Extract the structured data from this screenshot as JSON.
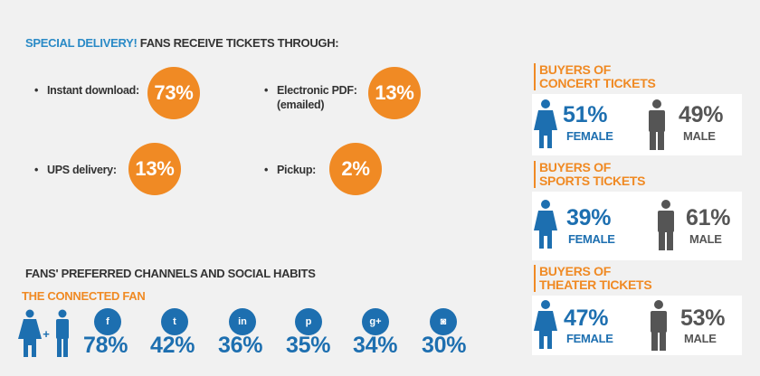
{
  "header": {
    "part1": "SPECIAL DELIVERY!",
    "part2": "FANS RECEIVE TICKETS THROUGH:"
  },
  "delivery": [
    {
      "label": "Instant download:",
      "value": "73%"
    },
    {
      "label": "Electronic PDF:",
      "label2": "(emailed)",
      "value": "13%"
    },
    {
      "label": "UPS delivery:",
      "value": "13%"
    },
    {
      "label": "Pickup:",
      "value": "2%"
    }
  ],
  "channels": {
    "title": "FANS' PREFERRED CHANNELS AND SOCIAL HABITS",
    "subtitle": "THE CONNECTED FAN",
    "items": [
      {
        "icon": "facebook-icon",
        "glyph": "f",
        "value": "78%"
      },
      {
        "icon": "twitter-icon",
        "glyph": "t",
        "value": "42%"
      },
      {
        "icon": "linkedin-icon",
        "glyph": "in",
        "value": "36%"
      },
      {
        "icon": "pinterest-icon",
        "glyph": "p",
        "value": "35%"
      },
      {
        "icon": "googleplus-icon",
        "glyph": "g+",
        "value": "34%"
      },
      {
        "icon": "instagram-icon",
        "glyph": "◙",
        "value": "30%"
      }
    ]
  },
  "buyers": [
    {
      "line1": "BUYERS OF",
      "line2": "CONCERT TICKETS",
      "female": "51%",
      "male": "49%"
    },
    {
      "line1": "BUYERS OF",
      "line2": "SPORTS TICKETS",
      "female": "39%",
      "male": "61%"
    },
    {
      "line1": "BUYERS OF",
      "line2": "THEATER TICKETS",
      "female": "47%",
      "male": "53%"
    }
  ],
  "labels": {
    "female": "FEMALE",
    "male": "MALE"
  },
  "colors": {
    "orange": "#f08a24",
    "blue": "#1d6fb0",
    "gray": "#555555"
  }
}
